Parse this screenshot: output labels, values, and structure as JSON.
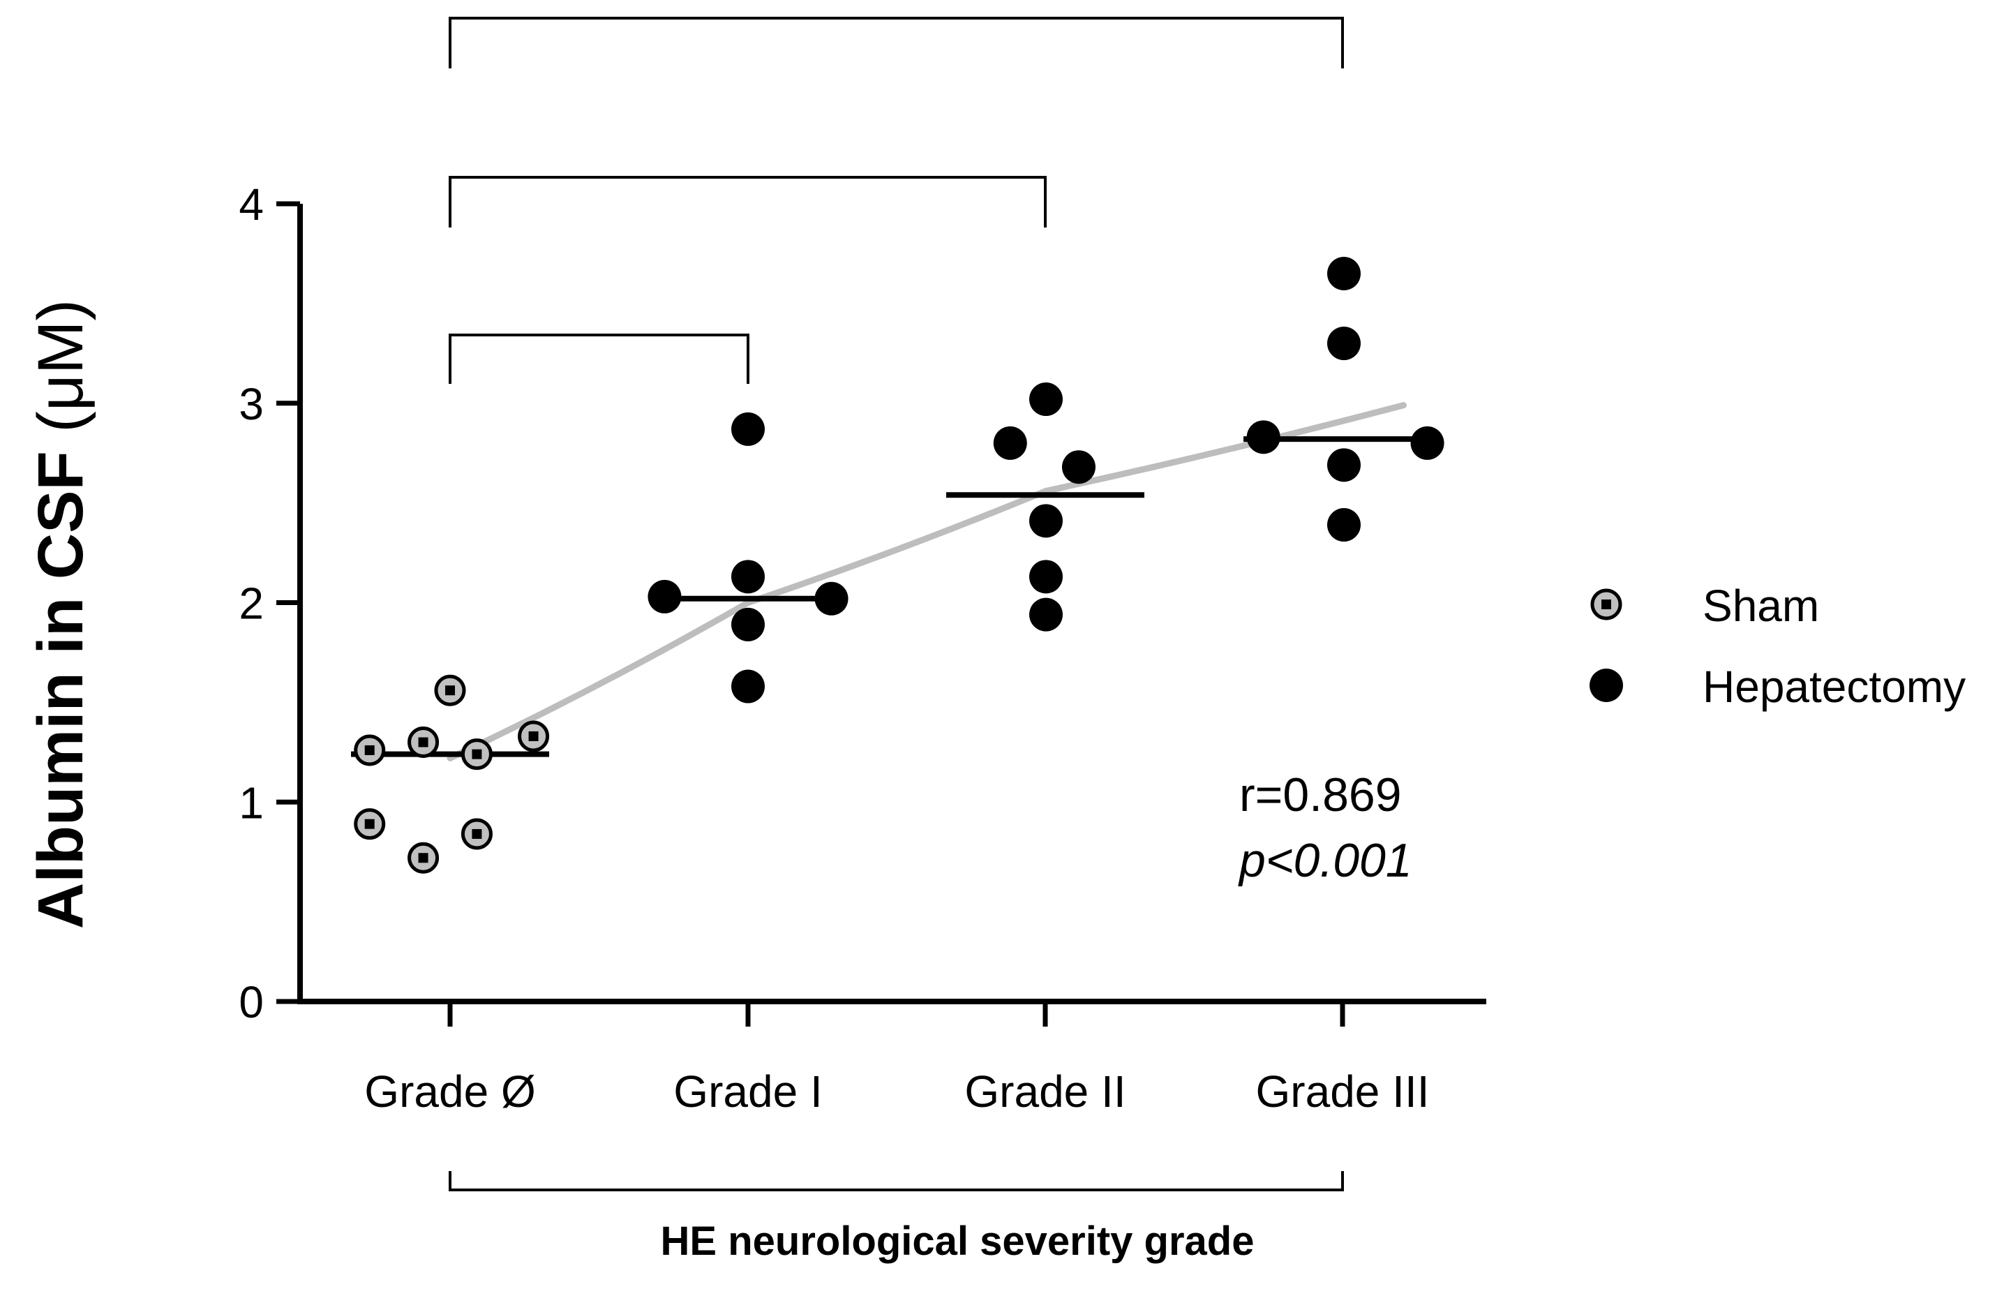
{
  "chart_data": {
    "type": "scatter",
    "title": "",
    "ylabel": "Albumin in CSF",
    "ylabel_unit": "(μM)",
    "xlabel": "HE neurological severity grade",
    "ylim": [
      0,
      4
    ],
    "yticks": [
      "0",
      "1",
      "2",
      "3",
      "4"
    ],
    "categories": [
      "Grade Ø",
      "Grade I",
      "Grade II",
      "Grade III"
    ],
    "series": [
      {
        "name": "Sham",
        "marker": "gray-circle-with-dot",
        "points": [
          {
            "cat": 0,
            "offset": -0.27,
            "y": 1.26
          },
          {
            "cat": 0,
            "offset": -0.09,
            "y": 1.3
          },
          {
            "cat": 0,
            "offset": 0.0,
            "y": 1.56
          },
          {
            "cat": 0,
            "offset": 0.09,
            "y": 1.24
          },
          {
            "cat": 0,
            "offset": 0.28,
            "y": 1.33
          },
          {
            "cat": 0,
            "offset": -0.27,
            "y": 0.89
          },
          {
            "cat": 0,
            "offset": -0.09,
            "y": 0.72
          },
          {
            "cat": 0,
            "offset": 0.09,
            "y": 0.84
          }
        ]
      },
      {
        "name": "Hepatectomy",
        "marker": "black-circle",
        "points": [
          {
            "cat": 1,
            "offset": -0.28,
            "y": 2.03
          },
          {
            "cat": 1,
            "offset": 0.0,
            "y": 2.87
          },
          {
            "cat": 1,
            "offset": 0.0,
            "y": 2.13
          },
          {
            "cat": 1,
            "offset": 0.0,
            "y": 1.89
          },
          {
            "cat": 1,
            "offset": 0.0,
            "y": 1.58
          },
          {
            "cat": 1,
            "offset": 0.28,
            "y": 2.02
          },
          {
            "cat": 2,
            "offset": -0.12,
            "y": 2.8
          },
          {
            "cat": 2,
            "offset": 0.0,
            "y": 3.02
          },
          {
            "cat": 2,
            "offset": 0.11,
            "y": 2.68
          },
          {
            "cat": 2,
            "offset": 0.0,
            "y": 2.41
          },
          {
            "cat": 2,
            "offset": 0.0,
            "y": 2.13
          },
          {
            "cat": 2,
            "offset": 0.0,
            "y": 1.94
          },
          {
            "cat": 3,
            "offset": 0.0,
            "y": 3.65
          },
          {
            "cat": 3,
            "offset": 0.0,
            "y": 3.3
          },
          {
            "cat": 3,
            "offset": -0.27,
            "y": 2.83
          },
          {
            "cat": 3,
            "offset": 0.28,
            "y": 2.8
          },
          {
            "cat": 3,
            "offset": 0.0,
            "y": 2.69
          },
          {
            "cat": 3,
            "offset": 0.0,
            "y": 2.39
          }
        ]
      }
    ],
    "medians": [
      1.24,
      2.02,
      2.54,
      2.82
    ],
    "trend_line": {
      "color": "#bdbdbd",
      "points": [
        {
          "cat": 0.0,
          "y": 1.22
        },
        {
          "cat": 1.0,
          "y": 2.0
        },
        {
          "cat": 2.0,
          "y": 2.56
        },
        {
          "cat": 3.2,
          "y": 2.99
        }
      ]
    },
    "significance_brackets": [
      {
        "from": 0,
        "to": 1,
        "level": "low"
      },
      {
        "from": 0,
        "to": 2,
        "level": "mid"
      },
      {
        "from": 0,
        "to": 3,
        "level": "high"
      }
    ],
    "annotations": {
      "r": "r=0.869",
      "p": "p<0.001"
    },
    "legend": {
      "placement": "right",
      "entries": [
        {
          "label": "Sham",
          "marker": "gray-circle-with-dot"
        },
        {
          "label": "Hepatectomy",
          "marker": "black-circle"
        }
      ]
    },
    "colors": {
      "axis": "#000000",
      "sham_fill": "#c0c0c0",
      "hepatectomy_fill": "#000000",
      "trend": "#bdbdbd"
    }
  }
}
